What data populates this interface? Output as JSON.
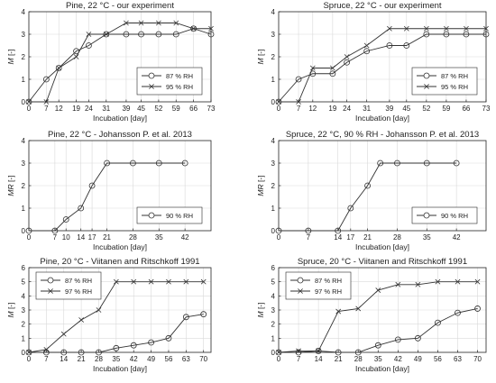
{
  "chart_data": [
    {
      "type": "line",
      "title": "Pine, 22 °C - our experiment",
      "xlabel": "Incubation [day]",
      "ylabel": "M [-]",
      "ylabel_italic": "M",
      "ylabel_rest": " [-]",
      "xlim": [
        0,
        73
      ],
      "ylim": [
        0,
        4
      ],
      "xticks": [
        0,
        7,
        12,
        19,
        24,
        31,
        39,
        45,
        52,
        59,
        66,
        73
      ],
      "yticks": [
        0,
        1,
        2,
        3,
        4
      ],
      "grid": true,
      "legend_position": "bottom-right",
      "series": [
        {
          "name": "87 % RH",
          "marker": "circle",
          "x": [
            0,
            7,
            12,
            19,
            24,
            31,
            39,
            45,
            52,
            59,
            66,
            73
          ],
          "y": [
            0,
            1,
            1.5,
            2.25,
            2.5,
            3,
            3,
            3,
            3,
            3,
            3.25,
            3
          ]
        },
        {
          "name": "95 % RH",
          "marker": "x",
          "x": [
            0,
            7,
            12,
            19,
            24,
            31,
            39,
            45,
            52,
            59,
            66,
            73
          ],
          "y": [
            0,
            0,
            1.5,
            2,
            3,
            3,
            3.5,
            3.5,
            3.5,
            3.5,
            3.25,
            3.25
          ]
        }
      ]
    },
    {
      "type": "line",
      "title": "Spruce, 22 °C - our experiment",
      "xlabel": "Incubation [day]",
      "ylabel": "M [-]",
      "ylabel_italic": "M",
      "ylabel_rest": " [-]",
      "xlim": [
        0,
        73
      ],
      "ylim": [
        0,
        4
      ],
      "xticks": [
        0,
        7,
        12,
        19,
        24,
        31,
        39,
        45,
        52,
        59,
        66,
        73
      ],
      "yticks": [
        0,
        1,
        2,
        3,
        4
      ],
      "grid": true,
      "legend_position": "bottom-right",
      "series": [
        {
          "name": "87 % RH",
          "marker": "circle",
          "x": [
            0,
            7,
            12,
            19,
            24,
            31,
            39,
            45,
            52,
            59,
            66,
            73
          ],
          "y": [
            0,
            1,
            1.25,
            1.25,
            1.75,
            2.25,
            2.5,
            2.5,
            3,
            3,
            3,
            3
          ]
        },
        {
          "name": "95 % RH",
          "marker": "x",
          "x": [
            0,
            7,
            12,
            19,
            24,
            31,
            39,
            45,
            52,
            59,
            66,
            73
          ],
          "y": [
            0,
            0,
            1.5,
            1.5,
            2,
            2.5,
            3.25,
            3.25,
            3.25,
            3.25,
            3.25,
            3.25
          ]
        }
      ]
    },
    {
      "type": "line",
      "title": "Pine, 22 °C - Johansson P. et al. 2013",
      "xlabel": "Incubation [day]",
      "ylabel": "MR [-]",
      "ylabel_italic": "MR",
      "ylabel_rest": " [-]",
      "xlim": [
        0,
        49
      ],
      "ylim": [
        0,
        4
      ],
      "xticks": [
        0,
        7,
        10,
        14,
        17,
        21,
        28,
        35,
        42
      ],
      "xticklabels": [
        "0",
        "7",
        "10",
        "14",
        "17",
        "21",
        "28",
        "35",
        "42"
      ],
      "yticks": [
        0,
        1,
        2,
        3,
        4
      ],
      "grid": true,
      "legend_position": "bottom-right",
      "series": [
        {
          "name": "90 % RH",
          "marker": "circle",
          "x": [
            0,
            7,
            10,
            14,
            17,
            21,
            28,
            35,
            42
          ],
          "y": [
            0,
            0,
            0.5,
            1,
            2,
            3,
            3,
            3,
            3
          ]
        }
      ]
    },
    {
      "type": "line",
      "title": "Spruce, 22 °C, 90 % RH - Johansson P. et al. 2013",
      "xlabel": "Incubation [day]",
      "ylabel": "MR [-]",
      "ylabel_italic": "MR",
      "ylabel_rest": " [-]",
      "xlim": [
        0,
        49
      ],
      "ylim": [
        0,
        4
      ],
      "xticks": [
        0,
        7,
        14,
        17,
        21,
        28,
        35,
        42
      ],
      "xticklabels": [
        "0",
        "7",
        "14",
        "17",
        "21",
        "28",
        "35",
        "42"
      ],
      "yticks": [
        0,
        1,
        2,
        3,
        4
      ],
      "grid": true,
      "legend_position": "bottom-right",
      "series": [
        {
          "name": "90 % RH",
          "marker": "circle",
          "x": [
            0,
            7,
            14,
            17,
            21,
            24,
            28,
            35,
            42
          ],
          "y": [
            0,
            0,
            0,
            1,
            2,
            3,
            3,
            3,
            3
          ]
        }
      ]
    },
    {
      "type": "line",
      "title": "Pine, 20 °C - Viitanen and Ritschkoff 1991",
      "xlabel": "Incubation [day]",
      "ylabel": "M [-]",
      "ylabel_italic": "M",
      "ylabel_rest": " [-]",
      "xlim": [
        0,
        73
      ],
      "ylim": [
        0,
        6
      ],
      "xticks": [
        0,
        7,
        14,
        21,
        28,
        35,
        42,
        49,
        56,
        63,
        70
      ],
      "yticks": [
        0,
        1,
        2,
        3,
        4,
        5,
        6
      ],
      "grid": true,
      "legend_position": "top-left",
      "series": [
        {
          "name": "87 % RH",
          "marker": "circle",
          "x": [
            0,
            7,
            14,
            21,
            28,
            35,
            42,
            49,
            56,
            63,
            70
          ],
          "y": [
            0,
            0,
            0,
            0,
            0,
            0.3,
            0.5,
            0.7,
            1,
            2.5,
            2.7
          ]
        },
        {
          "name": "97 % RH",
          "marker": "x",
          "x": [
            0,
            7,
            14,
            21,
            28,
            35,
            42,
            49,
            56,
            63,
            70
          ],
          "y": [
            0,
            0.2,
            1.3,
            2.3,
            3,
            5,
            5,
            5,
            5,
            5,
            5
          ]
        }
      ]
    },
    {
      "type": "line",
      "title": "Spruce, 20 °C - Viitanen and Ritschkoff 1991",
      "xlabel": "Incubation [day]",
      "ylabel": "M [-]",
      "ylabel_italic": "M",
      "ylabel_rest": " [-]",
      "xlim": [
        0,
        73
      ],
      "ylim": [
        0,
        6
      ],
      "xticks": [
        0,
        7,
        14,
        21,
        28,
        35,
        42,
        49,
        56,
        63,
        70
      ],
      "yticks": [
        0,
        1,
        2,
        3,
        4,
        5,
        6
      ],
      "grid": true,
      "legend_position": "top-left",
      "series": [
        {
          "name": "87 % RH",
          "marker": "circle",
          "x": [
            0,
            7,
            14,
            21,
            28,
            35,
            42,
            49,
            56,
            63,
            70
          ],
          "y": [
            0,
            0,
            0.1,
            0,
            0,
            0.5,
            0.9,
            1,
            2.1,
            2.8,
            3.1
          ]
        },
        {
          "name": "97 % RH",
          "marker": "x",
          "x": [
            0,
            7,
            14,
            21,
            28,
            35,
            42,
            49,
            56,
            63,
            70
          ],
          "y": [
            0,
            0.1,
            0.1,
            2.9,
            3.1,
            4.4,
            4.8,
            4.8,
            5,
            5,
            5
          ]
        }
      ]
    }
  ]
}
